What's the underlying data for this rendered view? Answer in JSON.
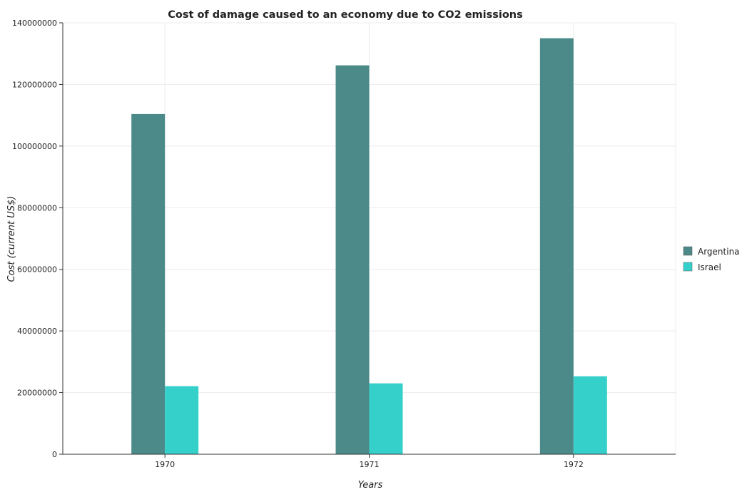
{
  "chart_data": {
    "type": "bar",
    "title": "Cost of damage caused to an economy due to CO2 emissions",
    "xlabel": "Years",
    "ylabel": "Cost (current US$)",
    "categories": [
      "1970",
      "1971",
      "1972"
    ],
    "series": [
      {
        "name": "Argentina",
        "color": "#4c8a8a",
        "values": [
          110400000,
          126200000,
          135000000
        ]
      },
      {
        "name": "Israel",
        "color": "#36d0cb",
        "values": [
          22100000,
          23000000,
          25300000
        ]
      }
    ],
    "ylim": [
      0,
      140000000
    ],
    "yticks": [
      0,
      20000000,
      40000000,
      60000000,
      80000000,
      100000000,
      120000000,
      140000000
    ],
    "ytick_labels": [
      "0",
      "20000000",
      "40000000",
      "60000000",
      "80000000",
      "100000000",
      "120000000",
      "140000000"
    ],
    "grid": true,
    "legend_position": "right"
  }
}
